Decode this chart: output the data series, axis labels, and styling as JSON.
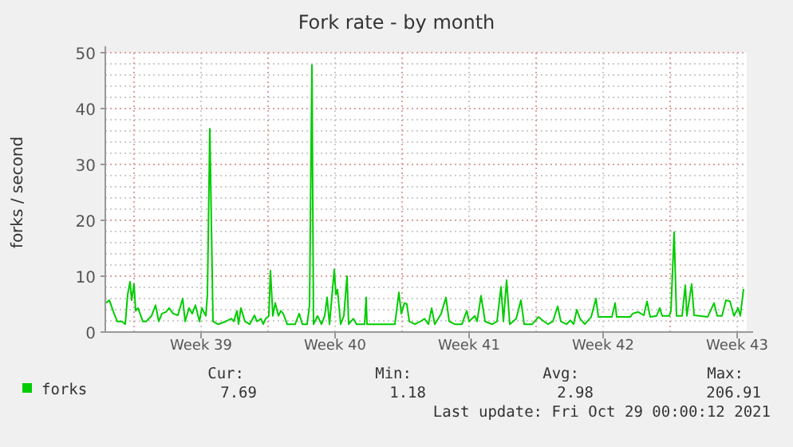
{
  "chart_data": {
    "type": "line",
    "title": "Fork rate - by month",
    "ylabel": "forks / second",
    "xlim": [
      "2021-09-25T12:00",
      "2021-10-29T00:00"
    ],
    "xticks": [
      {
        "value": "2021-09-27T00:00",
        "label": null
      },
      {
        "value": "2021-09-30T12:00",
        "label": "Week 39"
      },
      {
        "value": "2021-10-04T00:00",
        "label": null
      },
      {
        "value": "2021-10-07T12:00",
        "label": "Week 40"
      },
      {
        "value": "2021-10-11T00:00",
        "label": null
      },
      {
        "value": "2021-10-14T12:00",
        "label": "Week 41"
      },
      {
        "value": "2021-10-18T00:00",
        "label": null
      },
      {
        "value": "2021-10-21T12:00",
        "label": "Week 42"
      },
      {
        "value": "2021-10-25T00:00",
        "label": null
      },
      {
        "value": "2021-10-28T12:00",
        "label": "Week 43"
      }
    ],
    "ylim": [
      0,
      50
    ],
    "yticks": [
      0,
      {
        "value": 2,
        "label": null
      },
      {
        "value": 4,
        "label": null
      },
      {
        "value": 6,
        "label": null
      },
      {
        "value": 8,
        "label": null
      },
      10,
      {
        "value": 12,
        "label": null
      },
      {
        "value": 14,
        "label": null
      },
      {
        "value": 16,
        "label": null
      },
      {
        "value": 18,
        "label": null
      },
      20,
      {
        "value": 22,
        "label": null
      },
      {
        "value": 24,
        "label": null
      },
      {
        "value": 26,
        "label": null
      },
      {
        "value": 28,
        "label": null
      },
      30,
      {
        "value": 32,
        "label": null
      },
      {
        "value": 34,
        "label": null
      },
      {
        "value": 36,
        "label": null
      },
      {
        "value": 38,
        "label": null
      },
      40,
      {
        "value": 42,
        "label": null
      },
      {
        "value": 44,
        "label": null
      },
      {
        "value": 46,
        "label": null
      },
      {
        "value": 48,
        "label": null
      },
      50
    ],
    "grid": true,
    "legend": "bottom",
    "marker": "none",
    "line_style": "solid",
    "annotations": [
      "Cur:",
      "Min:",
      "Avg:",
      "Max:",
      "7.69",
      "1.18",
      "2.98",
      "206.91",
      "Last update: Fri Oct 29 00:00:12 2021"
    ],
    "series": [
      {
        "name": "forks",
        "color": "#00cc00",
        "x": [
          "2021-09-25T13:00",
          "2021-09-25T17:00",
          "2021-09-25T23:00",
          "2021-09-26T03:00",
          "2021-09-26T09:00",
          "2021-09-26T13:00",
          "2021-09-26T16:00",
          "2021-09-26T19:00",
          "2021-09-26T21:00",
          "2021-09-27T00:00",
          "2021-09-27T02:00",
          "2021-09-27T05:00",
          "2021-09-27T11:00",
          "2021-09-27T15:00",
          "2021-09-27T22:00",
          "2021-09-28T03:00",
          "2021-09-28T07:00",
          "2021-09-28T11:00",
          "2021-09-28T16:00",
          "2021-09-28T20:00",
          "2021-09-29T01:00",
          "2021-09-29T07:00",
          "2021-09-29T13:00",
          "2021-09-29T16:00",
          "2021-09-29T21:00",
          "2021-09-30T01:00",
          "2021-09-30T05:00",
          "2021-09-30T10:00",
          "2021-09-30T13:00",
          "2021-09-30T18:00",
          "2021-09-30T20:00",
          "2021-09-30T23:00",
          "2021-10-01T03:00",
          "2021-10-01T09:00",
          "2021-10-01T19:00",
          "2021-10-02T02:00",
          "2021-10-02T05:00",
          "2021-10-02T09:00",
          "2021-10-02T11:00",
          "2021-10-02T14:00",
          "2021-10-02T19:00",
          "2021-10-03T01:00",
          "2021-10-03T07:00",
          "2021-10-03T10:00",
          "2021-10-03T15:00",
          "2021-10-03T18:00",
          "2021-10-03T21:00",
          "2021-10-04T01:00",
          "2021-10-04T03:00",
          "2021-10-04T06:00",
          "2021-10-04T09:00",
          "2021-10-04T13:00",
          "2021-10-04T16:00",
          "2021-10-04T19:00",
          "2021-10-05T00:00",
          "2021-10-05T10:00",
          "2021-10-05T15:00",
          "2021-10-05T19:00",
          "2021-10-06T01:00",
          "2021-10-06T04:00",
          "2021-10-06T07:00",
          "2021-10-06T09:00",
          "2021-10-06T14:00",
          "2021-10-06T19:00",
          "2021-10-06T23:00",
          "2021-10-07T02:00",
          "2021-10-07T05:00",
          "2021-10-07T11:00",
          "2021-10-07T13:00",
          "2021-10-07T15:00",
          "2021-10-07T19:00",
          "2021-10-07T23:00",
          "2021-10-08T03:00",
          "2021-10-08T05:00",
          "2021-10-08T11:00",
          "2021-10-08T15:00",
          "2021-10-09T01:00",
          "2021-10-09T03:00",
          "2021-10-09T04:00",
          "2021-10-10T15:00",
          "2021-10-10T20:00",
          "2021-10-10T23:00",
          "2021-10-11T03:00",
          "2021-10-11T06:00",
          "2021-10-11T09:00",
          "2021-10-11T16:00",
          "2021-10-11T23:00",
          "2021-10-12T04:00",
          "2021-10-12T09:00",
          "2021-10-12T13:00",
          "2021-10-12T17:00",
          "2021-10-13T01:00",
          "2021-10-13T07:00",
          "2021-10-13T11:00",
          "2021-10-13T18:00",
          "2021-10-14T03:00",
          "2021-10-14T09:00",
          "2021-10-14T12:00",
          "2021-10-14T19:00",
          "2021-10-14T22:00",
          "2021-10-15T03:00",
          "2021-10-15T08:00",
          "2021-10-15T17:00",
          "2021-10-15T23:00",
          "2021-10-16T04:00",
          "2021-10-16T07:00",
          "2021-10-16T11:00",
          "2021-10-16T15:00",
          "2021-10-16T23:00",
          "2021-10-17T05:00",
          "2021-10-17T09:00",
          "2021-10-17T19:00",
          "2021-10-18T03:00",
          "2021-10-18T08:00",
          "2021-10-18T15:00",
          "2021-10-18T21:00",
          "2021-10-19T03:00",
          "2021-10-19T07:00",
          "2021-10-19T14:00",
          "2021-10-19T19:00",
          "2021-10-19T23:00",
          "2021-10-20T03:00",
          "2021-10-20T07:00",
          "2021-10-20T13:00",
          "2021-10-20T21:00",
          "2021-10-21T03:00",
          "2021-10-21T06:00",
          "2021-10-21T23:00",
          "2021-10-22T03:00",
          "2021-10-22T05:00",
          "2021-10-22T22:00",
          "2021-10-23T01:00",
          "2021-10-23T08:00",
          "2021-10-23T15:00",
          "2021-10-23T19:00",
          "2021-10-23T23:00",
          "2021-10-24T07:00",
          "2021-10-24T11:00",
          "2021-10-24T14:00",
          "2021-10-24T23:00",
          "2021-10-25T01:00",
          "2021-10-25T05:00",
          "2021-10-25T08:00",
          "2021-10-25T15:00",
          "2021-10-25T19:00",
          "2021-10-25T21:00",
          "2021-10-26T03:00",
          "2021-10-26T06:00",
          "2021-10-26T13:00",
          "2021-10-26T23:00",
          "2021-10-27T07:00",
          "2021-10-27T11:00",
          "2021-10-27T17:00",
          "2021-10-27T22:00",
          "2021-10-28T03:00",
          "2021-10-28T08:00",
          "2021-10-28T13:00",
          "2021-10-28T16:00",
          "2021-10-28T20:00"
        ],
        "values": [
          5.2,
          5.7,
          3.3,
          1.9,
          1.9,
          1.4,
          6.7,
          9,
          5.7,
          8.6,
          3.8,
          4.3,
          1.9,
          1.9,
          2.9,
          4.8,
          1.9,
          3.3,
          3.6,
          4.3,
          3.3,
          3,
          6,
          1.9,
          4.3,
          3.3,
          4.8,
          1.9,
          4.3,
          2.9,
          6.7,
          36.4,
          1.9,
          1.4,
          1.9,
          2.4,
          1.9,
          3.8,
          1.4,
          4.3,
          1.9,
          1.4,
          3,
          1.9,
          2.4,
          1.4,
          2.4,
          2.9,
          11,
          2.9,
          5.2,
          2.9,
          3.8,
          3.3,
          1.4,
          1.4,
          3.3,
          1.4,
          1.4,
          4.8,
          47.8,
          1.4,
          2.9,
          1.4,
          2.9,
          6.2,
          1.4,
          11.2,
          6.7,
          7.6,
          1.4,
          2.9,
          10,
          1.4,
          2.4,
          1.4,
          1.4,
          6.2,
          1.4,
          1.4,
          7.1,
          3.3,
          5.2,
          5,
          1.9,
          1.4,
          1.9,
          2.4,
          1.4,
          4.3,
          1.4,
          3.3,
          6.2,
          1.9,
          1.4,
          1.4,
          3.8,
          1.9,
          2.9,
          1.9,
          6.5,
          1.9,
          1.4,
          1.9,
          8.1,
          1.9,
          9.3,
          1.4,
          2.4,
          5.7,
          1.4,
          1.4,
          2.7,
          2.1,
          1.4,
          1.9,
          4.6,
          1.9,
          1.4,
          2.1,
          1.4,
          4,
          2.4,
          1.4,
          2.7,
          6,
          2.7,
          2.7,
          5.2,
          2.7,
          2.7,
          3.3,
          3.6,
          3,
          5.5,
          2.7,
          2.9,
          4.3,
          2.9,
          2.9,
          3.8,
          17.9,
          2.9,
          2.9,
          8.4,
          2.9,
          8.6,
          3,
          2.9,
          2.7,
          5.2,
          2.9,
          2.9,
          5.7,
          5.5,
          2.9,
          4.3,
          2.9,
          7.7
        ]
      }
    ]
  }
}
